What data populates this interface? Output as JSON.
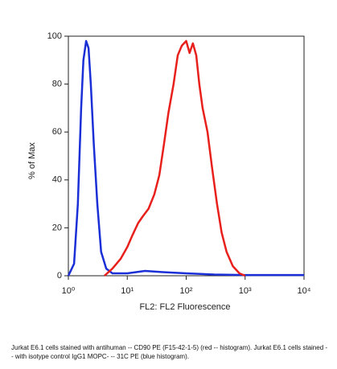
{
  "chart_data": {
    "type": "line",
    "xlabel": "FL2: FL2 Fluorescence",
    "ylabel": "% of Max",
    "xscale": "log",
    "xlim": [
      1,
      10000
    ],
    "xticks": [
      {
        "value": 1,
        "label": "10⁰"
      },
      {
        "value": 10,
        "label": "10¹"
      },
      {
        "value": 100,
        "label": "10²"
      },
      {
        "value": 1000,
        "label": "10³"
      },
      {
        "value": 10000,
        "label": "10⁴"
      }
    ],
    "ylim": [
      0,
      100
    ],
    "yticks": [
      0,
      20,
      40,
      60,
      80,
      100
    ],
    "series": [
      {
        "color": "#1a2fd6",
        "x": [
          1,
          1.25,
          1.45,
          1.65,
          1.8,
          2,
          2.2,
          2.4,
          2.7,
          3.1,
          3.6,
          4.4,
          5.6,
          10,
          20,
          40,
          100,
          300,
          1000,
          10000
        ],
        "values": [
          0,
          5,
          30,
          70,
          90,
          98,
          95,
          80,
          55,
          30,
          10,
          3,
          1,
          1,
          2,
          1.5,
          1,
          0.5,
          0.3,
          0.3
        ]
      },
      {
        "color": "#e8201c",
        "x": [
          4.1,
          5.6,
          7.7,
          10,
          12.3,
          15.3,
          18.6,
          23,
          28.8,
          35,
          42,
          50,
          61,
          72,
          84,
          92,
          100,
          114,
          130,
          148,
          167,
          190,
          230,
          275,
          333,
          400,
          485,
          620,
          800,
          1000
        ],
        "values": [
          0,
          3,
          7,
          12,
          17,
          22,
          25,
          28,
          34,
          42,
          55,
          68,
          80,
          92,
          96,
          97,
          98,
          93,
          97,
          92,
          80,
          70,
          60,
          45,
          30,
          18,
          10,
          4,
          1,
          0
        ]
      }
    ],
    "caption": "Jurkat E6.1 cells stained with antihuman -- CD90 PE (F15-42-1-5) (red -- histogram). Jurkat E6.1 cells stained -- with isotype control IgG1 MOPC- -- 31C PE (blue histogram)."
  }
}
